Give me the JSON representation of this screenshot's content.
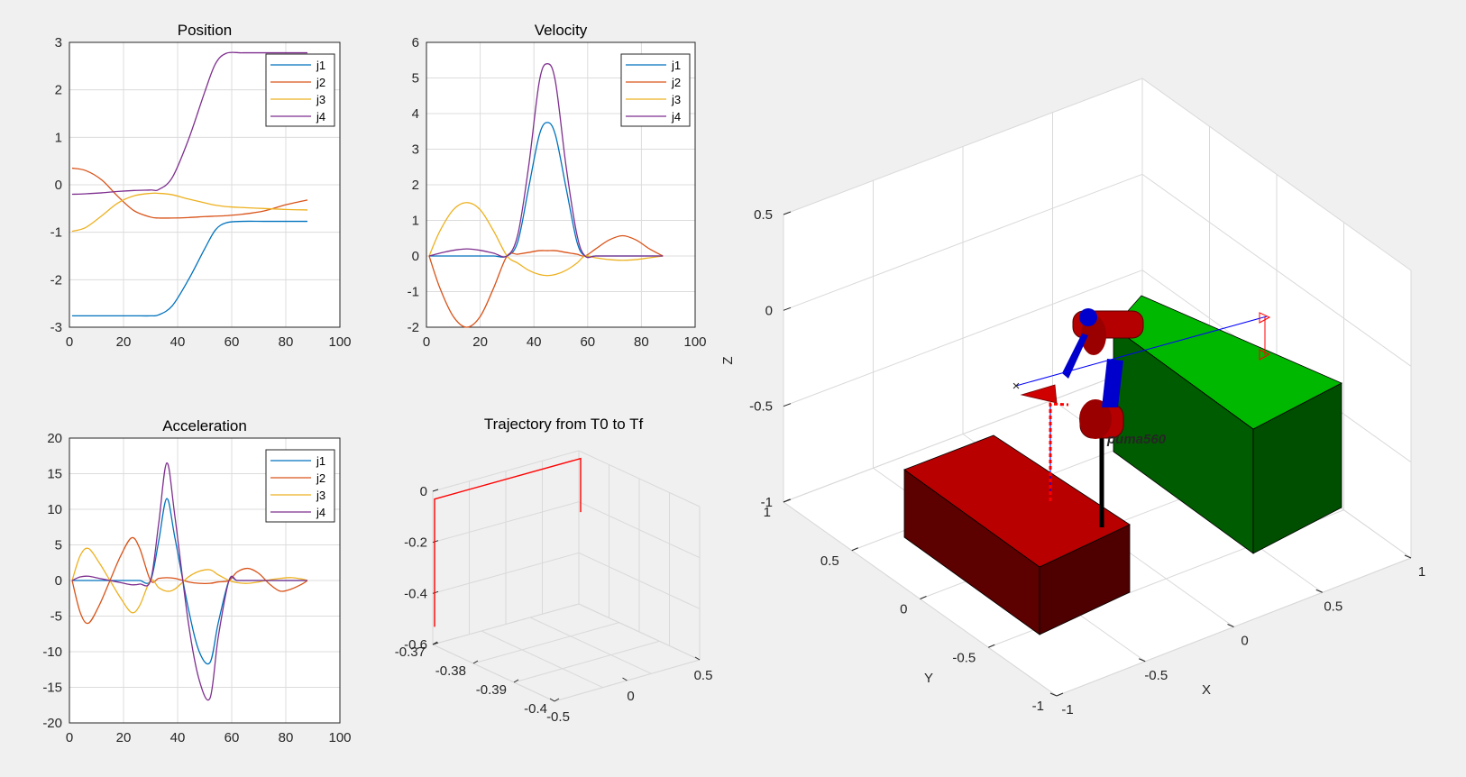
{
  "colors": {
    "j1": "#0072BD",
    "j2": "#D95319",
    "j3": "#EDB120",
    "j4": "#7E2F8E",
    "trajectory": "#FF0000",
    "red_box": "#CC0000",
    "green_box": "#00CC00",
    "robot": "#B40000",
    "robot_joint": "#0000CC"
  },
  "chart_data": [
    {
      "id": "position",
      "type": "line",
      "title": "Position",
      "xlim": [
        0,
        100
      ],
      "ylim": [
        -3,
        3
      ],
      "xticks": [
        "0",
        "20",
        "40",
        "60",
        "80",
        "100"
      ],
      "yticks": [
        "-3",
        "-2",
        "-1",
        "0",
        "1",
        "2",
        "3"
      ],
      "grid": true,
      "legend": "top-right",
      "x": [
        1,
        6,
        12,
        18,
        24,
        30,
        33,
        38,
        44,
        50,
        54,
        58,
        64,
        72,
        80,
        88
      ],
      "series": [
        {
          "name": "j1",
          "values": [
            -2.76,
            -2.76,
            -2.76,
            -2.76,
            -2.76,
            -2.76,
            -2.74,
            -2.55,
            -2.0,
            -1.35,
            -0.95,
            -0.8,
            -0.77,
            -0.77,
            -0.77,
            -0.77
          ]
        },
        {
          "name": "j2",
          "values": [
            0.35,
            0.3,
            0.1,
            -0.25,
            -0.55,
            -0.68,
            -0.7,
            -0.7,
            -0.69,
            -0.67,
            -0.66,
            -0.65,
            -0.62,
            -0.55,
            -0.42,
            -0.32
          ]
        },
        {
          "name": "j3",
          "values": [
            -0.98,
            -0.9,
            -0.65,
            -0.38,
            -0.23,
            -0.18,
            -0.18,
            -0.21,
            -0.3,
            -0.38,
            -0.43,
            -0.46,
            -0.48,
            -0.5,
            -0.52,
            -0.53
          ]
        },
        {
          "name": "j4",
          "values": [
            -0.2,
            -0.19,
            -0.17,
            -0.14,
            -0.12,
            -0.11,
            -0.1,
            0.15,
            0.95,
            1.95,
            2.55,
            2.77,
            2.78,
            2.78,
            2.78,
            2.78
          ]
        }
      ]
    },
    {
      "id": "velocity",
      "type": "line",
      "title": "Velocity",
      "xlim": [
        0,
        100
      ],
      "ylim": [
        -2,
        6
      ],
      "xticks": [
        "0",
        "20",
        "40",
        "60",
        "80",
        "100"
      ],
      "yticks": [
        "-2",
        "-1",
        "0",
        "1",
        "2",
        "3",
        "4",
        "5",
        "6"
      ],
      "grid": true,
      "legend": "top-right",
      "x": [
        1,
        5,
        10,
        15,
        20,
        25,
        30,
        34,
        38,
        42,
        45,
        48,
        52,
        56,
        59,
        63,
        68,
        73,
        78,
        83,
        88
      ],
      "series": [
        {
          "name": "j1",
          "values": [
            0,
            0,
            0,
            0,
            0,
            0,
            0,
            0.4,
            1.9,
            3.4,
            3.75,
            3.4,
            1.9,
            0.4,
            0,
            0,
            0,
            0,
            0,
            0,
            0
          ]
        },
        {
          "name": "j2",
          "values": [
            0,
            -0.9,
            -1.7,
            -2.0,
            -1.7,
            -0.9,
            0,
            0.05,
            0.1,
            0.15,
            0.15,
            0.15,
            0.1,
            0.05,
            0,
            0.2,
            0.45,
            0.57,
            0.45,
            0.2,
            0
          ]
        },
        {
          "name": "j3",
          "values": [
            0,
            0.7,
            1.3,
            1.5,
            1.3,
            0.7,
            0,
            -0.2,
            -0.4,
            -0.52,
            -0.55,
            -0.52,
            -0.4,
            -0.2,
            0,
            -0.05,
            -0.1,
            -0.12,
            -0.1,
            -0.05,
            0
          ]
        },
        {
          "name": "j4",
          "values": [
            0,
            0.08,
            0.16,
            0.2,
            0.16,
            0.08,
            0,
            0.6,
            2.5,
            4.9,
            5.4,
            4.9,
            2.5,
            0.6,
            0,
            0,
            0,
            0,
            0,
            0,
            0
          ]
        }
      ]
    },
    {
      "id": "acceleration",
      "type": "line",
      "title": "Acceleration",
      "xlim": [
        0,
        100
      ],
      "ylim": [
        -20,
        20
      ],
      "xticks": [
        "0",
        "20",
        "40",
        "60",
        "80",
        "100"
      ],
      "yticks": [
        "-20",
        "-15",
        "-10",
        "-5",
        "0",
        "5",
        "10",
        "15",
        "20"
      ],
      "grid": true,
      "legend": "top-right",
      "x": [
        1,
        4,
        7,
        11,
        15,
        19,
        23,
        26,
        30,
        33,
        36,
        39,
        44,
        48,
        52,
        55,
        59,
        62,
        66,
        70,
        74,
        78,
        82,
        86,
        88
      ],
      "series": [
        {
          "name": "j1",
          "values": [
            0,
            0,
            0,
            0,
            0,
            0,
            0,
            0,
            0,
            5.5,
            11.5,
            6,
            -4,
            -10,
            -11.5,
            -6,
            0,
            0,
            0,
            0,
            0,
            0,
            0,
            0,
            0
          ]
        },
        {
          "name": "j2",
          "values": [
            0,
            -4.5,
            -6,
            -3.5,
            0,
            3.5,
            6,
            4.5,
            0,
            0.3,
            0.4,
            0.3,
            -0.2,
            -0.4,
            -0.4,
            -0.2,
            0,
            1.2,
            1.7,
            1.0,
            -0.5,
            -1.5,
            -1.2,
            -0.5,
            0
          ]
        },
        {
          "name": "j3",
          "values": [
            0,
            3.5,
            4.5,
            2.5,
            0,
            -2.5,
            -4.5,
            -3.5,
            0,
            -1.0,
            -1.5,
            -1.2,
            0.5,
            1.3,
            1.5,
            0.8,
            0,
            -0.3,
            -0.4,
            -0.2,
            0.1,
            0.3,
            0.4,
            0.2,
            0
          ]
        },
        {
          "name": "j4",
          "values": [
            0,
            0.5,
            0.6,
            0.3,
            0,
            -0.3,
            -0.6,
            -0.5,
            0,
            8,
            16.5,
            9,
            -6,
            -14,
            -16.5,
            -8,
            0,
            0,
            0,
            0,
            0,
            0,
            0,
            0,
            0
          ]
        }
      ]
    },
    {
      "id": "trajectory",
      "type": "line",
      "title": "Trajectory from T0 to Tf",
      "zticks": [
        "0",
        "-0.2",
        "-0.4",
        "-0.6"
      ],
      "yticks": [
        "-0.37",
        "-0.38",
        "-0.39",
        "-0.4"
      ],
      "xticks": [
        "-0.5",
        "0",
        "0.5"
      ],
      "grid": true,
      "path_points": [
        {
          "x": -0.5,
          "y": -0.37,
          "z": -0.52
        },
        {
          "x": -0.5,
          "y": -0.37,
          "z": -0.02
        },
        {
          "x": 0.5,
          "y": -0.37,
          "z": -0.02
        },
        {
          "x": 0.5,
          "y": -0.37,
          "z": -0.23
        }
      ]
    },
    {
      "id": "workspace",
      "type": "scatter",
      "xlabel": "X",
      "ylabel": "Y",
      "zlabel": "Z",
      "xticks": [
        "-1",
        "-0.5",
        "0",
        "0.5",
        "1"
      ],
      "yticks": [
        "-1",
        "-0.5",
        "0",
        "0.5",
        "1"
      ],
      "zticks": [
        "-1",
        "-0.5",
        "0",
        "0.5"
      ],
      "grid": true,
      "robot_label": "puma560"
    }
  ]
}
